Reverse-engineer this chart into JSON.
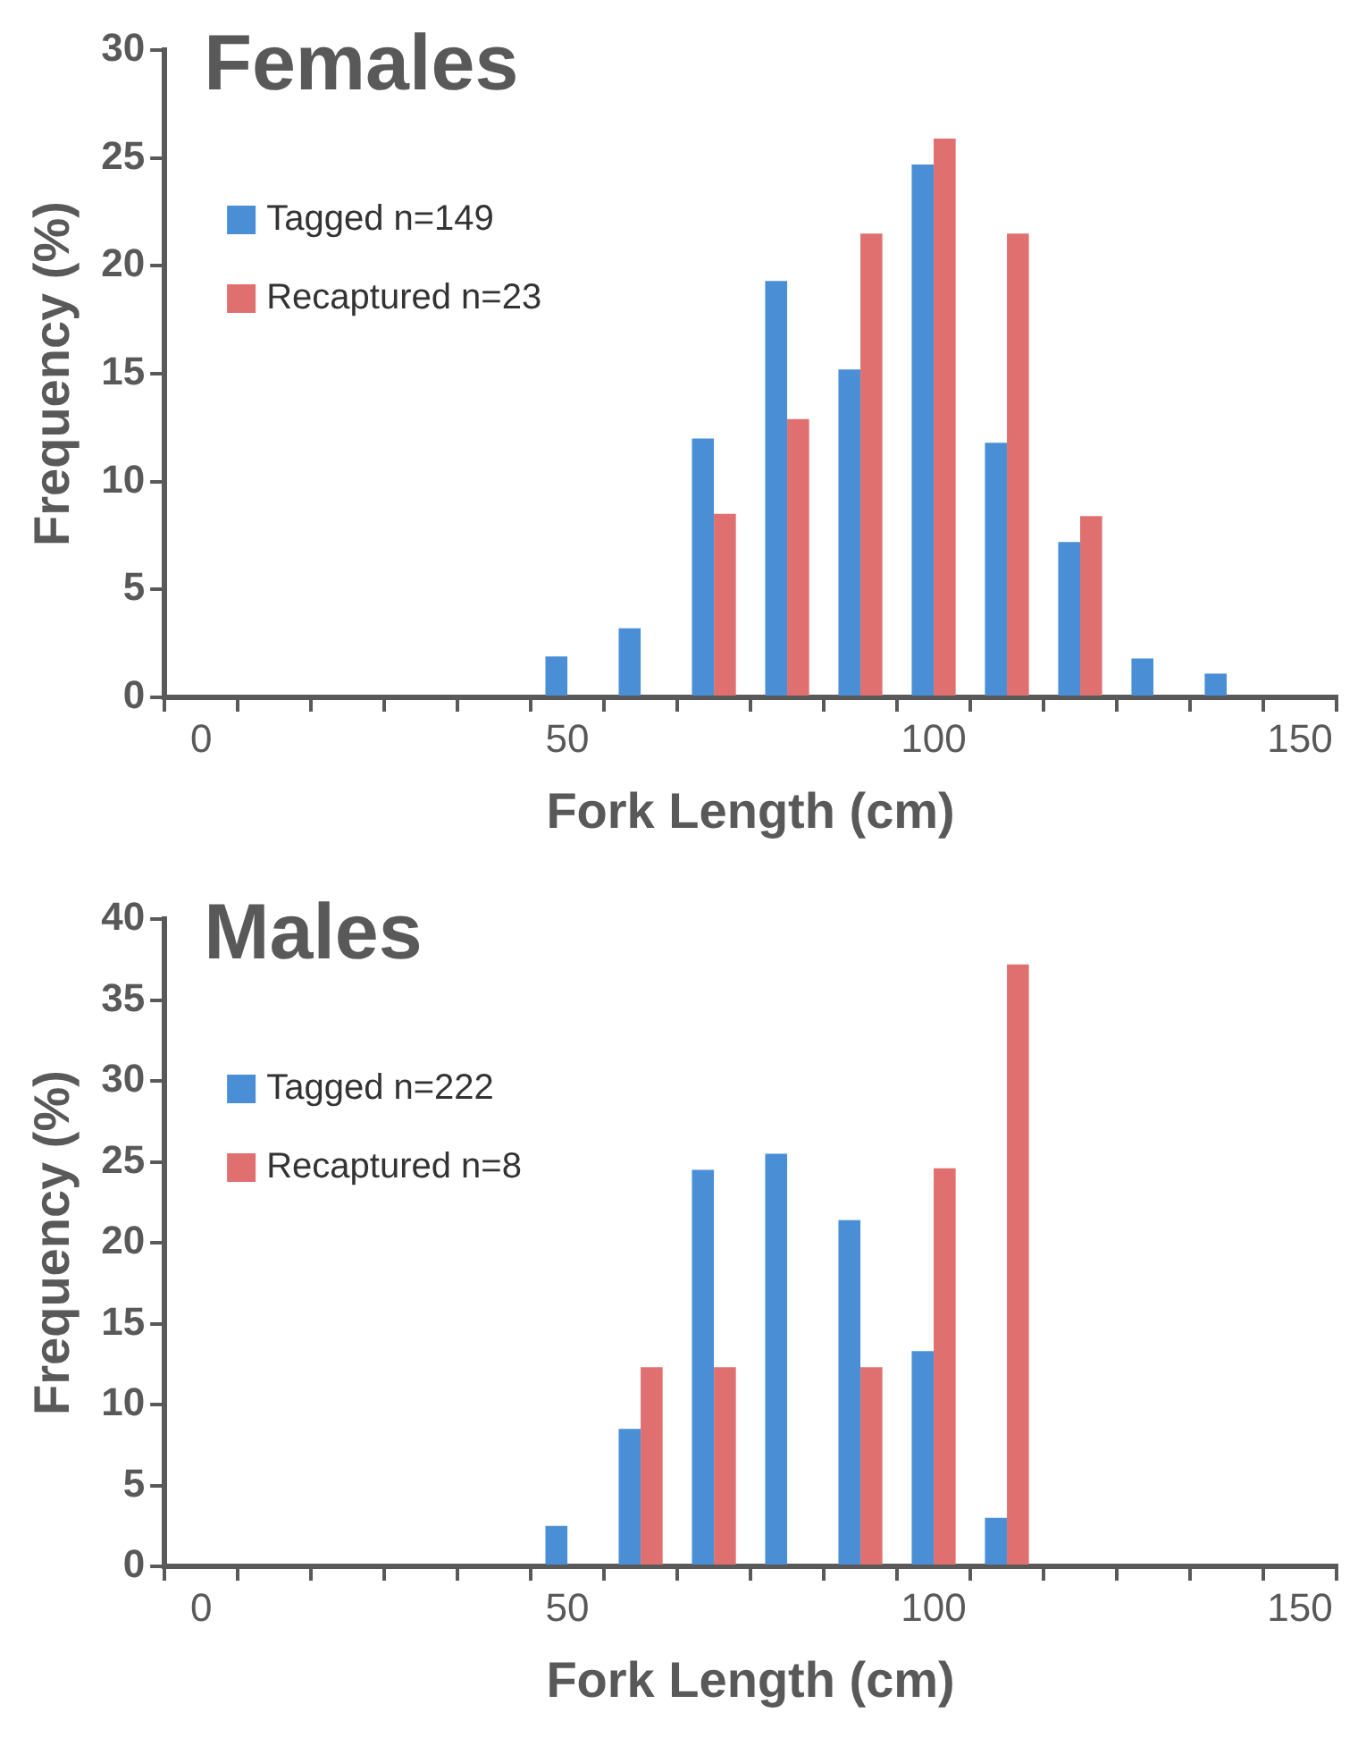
{
  "chart_data": [
    {
      "type": "bar",
      "title": "Females",
      "xlabel": "Fork Length (cm)",
      "ylabel": "Frequency (%)",
      "legend": "top left",
      "categories": [
        "0",
        null,
        null,
        null,
        null,
        "50",
        null,
        null,
        null,
        null,
        "100",
        null,
        null,
        null,
        null,
        "150"
      ],
      "series": [
        {
          "name": "Tagged n=149",
          "color": "#4a8fd6",
          "values": [
            0,
            0,
            0,
            0,
            0,
            1.9,
            3.2,
            12.0,
            19.3,
            15.2,
            24.7,
            11.8,
            7.2,
            1.8,
            1.1,
            0
          ]
        },
        {
          "name": "Recaptured n=23",
          "color": "#e07070",
          "values": [
            0,
            0,
            0,
            0,
            0,
            0,
            0,
            8.5,
            12.9,
            21.5,
            25.9,
            21.5,
            8.4,
            0,
            0,
            0
          ]
        }
      ],
      "ylim": [
        0,
        30
      ],
      "yticks": [
        0,
        5,
        10,
        15,
        20,
        25,
        30
      ]
    },
    {
      "type": "bar",
      "title": "Males",
      "xlabel": "Fork Length (cm)",
      "ylabel": "Frequency (%)",
      "legend": "top left",
      "categories": [
        "0",
        null,
        null,
        null,
        null,
        "50",
        null,
        null,
        null,
        null,
        "100",
        null,
        null,
        null,
        null,
        "150"
      ],
      "series": [
        {
          "name": "Tagged n=222",
          "color": "#4a8fd6",
          "values": [
            0,
            0,
            0,
            0,
            0,
            2.5,
            8.5,
            24.5,
            25.5,
            21.4,
            13.3,
            3.0,
            0,
            0,
            0,
            0
          ]
        },
        {
          "name": "Recaptured n=8",
          "color": "#e07070",
          "values": [
            0,
            0,
            0,
            0,
            0,
            0,
            12.3,
            12.3,
            0,
            12.3,
            24.6,
            37.2,
            0,
            0,
            0,
            0
          ]
        }
      ],
      "ylim": [
        0,
        40
      ],
      "yticks": [
        0,
        5,
        10,
        15,
        20,
        25,
        30,
        35,
        40
      ]
    }
  ]
}
